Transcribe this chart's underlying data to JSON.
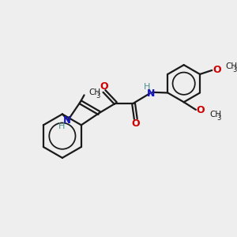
{
  "bg_color": "#eeeeee",
  "bond_color": "#1a1a1a",
  "N_color": "#1414c8",
  "O_color": "#cc0000",
  "H_color": "#4a9090",
  "line_width": 1.6,
  "figsize": [
    3.0,
    3.0
  ],
  "dpi": 100,
  "xlim": [
    0,
    10
  ],
  "ylim": [
    0,
    10
  ]
}
